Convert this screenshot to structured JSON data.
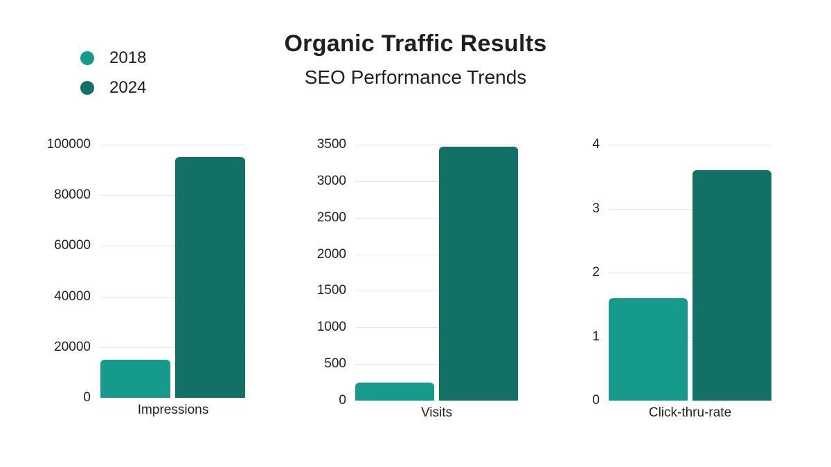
{
  "header": {
    "title": "Organic Traffic Results",
    "subtitle": "SEO Performance Trends"
  },
  "legend": [
    {
      "label": "2018",
      "color": "#159a8c"
    },
    {
      "label": "2024",
      "color": "#127065"
    }
  ],
  "chart_data": [
    {
      "type": "bar",
      "title": "Impressions",
      "categories": [
        "Impressions"
      ],
      "series": [
        {
          "name": "2018",
          "values": [
            15000
          ]
        },
        {
          "name": "2024",
          "values": [
            95000
          ]
        }
      ],
      "yticks": [
        "0",
        "20000",
        "40000",
        "60000",
        "80000",
        "100000"
      ],
      "ylim": [
        0,
        100000
      ],
      "xlabel": "Impressions",
      "ylabel": "",
      "grid": true
    },
    {
      "type": "bar",
      "title": "Visits",
      "categories": [
        "Visits"
      ],
      "series": [
        {
          "name": "2018",
          "values": [
            250
          ]
        },
        {
          "name": "2024",
          "values": [
            3470
          ]
        }
      ],
      "yticks": [
        "0",
        "500",
        "1000",
        "1500",
        "2000",
        "2500",
        "3000",
        "3500"
      ],
      "ylim": [
        0,
        3500
      ],
      "xlabel": "Visits",
      "ylabel": "",
      "grid": true
    },
    {
      "type": "bar",
      "title": "Click-thru-rate",
      "categories": [
        "Click-thru-rate"
      ],
      "series": [
        {
          "name": "2018",
          "values": [
            1.6
          ]
        },
        {
          "name": "2024",
          "values": [
            3.6
          ]
        }
      ],
      "yticks": [
        "0",
        "1",
        "2",
        "3",
        "4"
      ],
      "ylim": [
        0,
        4
      ],
      "xlabel": "Click-thru-rate",
      "ylabel": "",
      "grid": true
    }
  ]
}
